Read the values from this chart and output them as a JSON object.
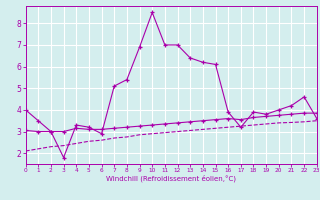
{
  "xlabel": "Windchill (Refroidissement éolien,°C)",
  "bg_color": "#d4eeee",
  "grid_color": "#ffffff",
  "line_color": "#aa00aa",
  "xmin": 0,
  "xmax": 23,
  "ymin": 1.5,
  "ymax": 8.8,
  "yticks": [
    2,
    3,
    4,
    5,
    6,
    7,
    8
  ],
  "xticks": [
    0,
    1,
    2,
    3,
    4,
    5,
    6,
    7,
    8,
    9,
    10,
    11,
    12,
    13,
    14,
    15,
    16,
    17,
    18,
    19,
    20,
    21,
    22,
    23
  ],
  "line1_x": [
    0,
    1,
    2,
    3,
    4,
    5,
    6,
    7,
    8,
    9,
    10,
    11,
    12,
    13,
    14,
    15,
    16,
    17,
    18,
    19,
    20,
    21,
    22,
    23
  ],
  "line1_y": [
    4.0,
    3.5,
    3.0,
    1.8,
    3.3,
    3.2,
    2.9,
    5.1,
    5.4,
    6.9,
    8.5,
    7.0,
    7.0,
    6.4,
    6.2,
    6.1,
    3.9,
    3.2,
    3.9,
    3.8,
    4.0,
    4.2,
    4.6,
    3.6
  ],
  "line2_x": [
    0,
    1,
    2,
    3,
    4,
    5,
    6,
    7,
    8,
    9,
    10,
    11,
    12,
    13,
    14,
    15,
    16,
    17,
    18,
    19,
    20,
    21,
    22,
    23
  ],
  "line2_y": [
    3.05,
    3.0,
    3.0,
    3.0,
    3.15,
    3.1,
    3.1,
    3.15,
    3.2,
    3.25,
    3.3,
    3.35,
    3.4,
    3.45,
    3.5,
    3.55,
    3.6,
    3.55,
    3.65,
    3.7,
    3.75,
    3.8,
    3.85,
    3.85
  ],
  "line3_x": [
    0,
    1,
    2,
    3,
    4,
    5,
    6,
    7,
    8,
    9,
    10,
    11,
    12,
    13,
    14,
    15,
    16,
    17,
    18,
    19,
    20,
    21,
    22,
    23
  ],
  "line3_y": [
    2.1,
    2.2,
    2.3,
    2.35,
    2.45,
    2.55,
    2.6,
    2.7,
    2.75,
    2.85,
    2.9,
    2.95,
    3.0,
    3.05,
    3.1,
    3.15,
    3.2,
    3.25,
    3.3,
    3.35,
    3.4,
    3.42,
    3.45,
    3.5
  ]
}
